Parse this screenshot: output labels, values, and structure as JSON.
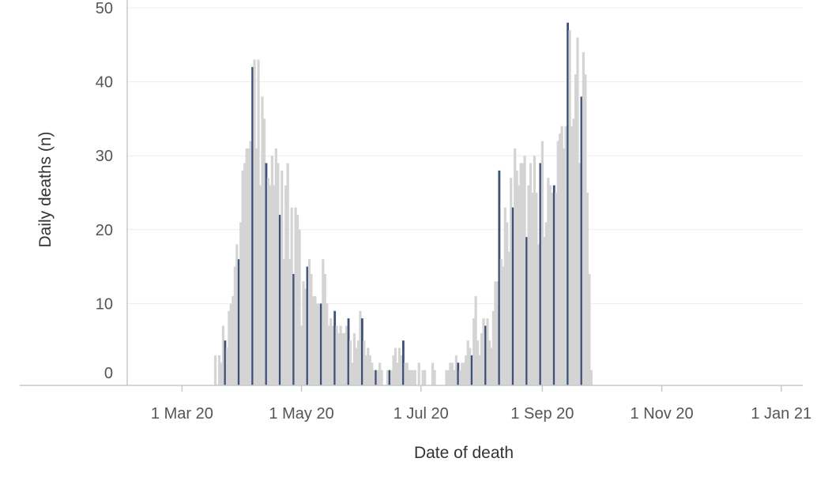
{
  "chart_data": {
    "type": "bar",
    "xlabel": "Date of death",
    "ylabel": "Daily deaths (n)",
    "ylim": [
      0,
      50
    ],
    "y_ticks": [
      {
        "value": 0,
        "label": "0"
      },
      {
        "value": 10,
        "label": "10"
      },
      {
        "value": 20,
        "label": "20"
      },
      {
        "value": 30,
        "label": "30"
      },
      {
        "value": 40,
        "label": "40"
      },
      {
        "value": 50,
        "label": "50"
      }
    ],
    "x_range": [
      "2020-02-02",
      "2021-01-12"
    ],
    "x_ticks": [
      {
        "date": "2020-03-01",
        "label": "1 Mar 20"
      },
      {
        "date": "2020-05-01",
        "label": "1 May 20"
      },
      {
        "date": "2020-07-01",
        "label": "1 Jul 20"
      },
      {
        "date": "2020-09-01",
        "label": "1 Sep 20"
      },
      {
        "date": "2020-11-01",
        "label": "1 Nov 20"
      },
      {
        "date": "2021-01-01",
        "label": "1 Jan 21"
      }
    ],
    "grid": true,
    "colors": {
      "gray_bar": "#d4d4d4",
      "blue_bar": "#3c5078",
      "gridline": "#ececec",
      "axis": "#c8c8c8"
    },
    "series": [
      {
        "start": "2020-03-18",
        "values": [
          3,
          0,
          3,
          2,
          7,
          5,
          4,
          9,
          10,
          11,
          15,
          18,
          16,
          21,
          28,
          29,
          31,
          31,
          32,
          42,
          43,
          31,
          43,
          26,
          38,
          35,
          29,
          27,
          26,
          30,
          26,
          31,
          29,
          22,
          28,
          16,
          26,
          29,
          16,
          23,
          14,
          23,
          22,
          20,
          7,
          13,
          12,
          15,
          16,
          14,
          11,
          11,
          10,
          10,
          10,
          16,
          14,
          10,
          7,
          8,
          7,
          9,
          7,
          6,
          7,
          6,
          6,
          7,
          8,
          5,
          2,
          6,
          4,
          5,
          9,
          8,
          5,
          3,
          4,
          3,
          2,
          1,
          1,
          1,
          2,
          1,
          0,
          0,
          1,
          1,
          1,
          3,
          4,
          2,
          4,
          3,
          5,
          2,
          2,
          1,
          1,
          1,
          1,
          0,
          2,
          0,
          1,
          1,
          0,
          0,
          0,
          2,
          1,
          0,
          0,
          0,
          0,
          0,
          1,
          1,
          2,
          2,
          1,
          3,
          2,
          1,
          2,
          2,
          3,
          5,
          4,
          3,
          8,
          11,
          5,
          3,
          6,
          8,
          7,
          8,
          5,
          4,
          9,
          13,
          13,
          28,
          16,
          15,
          23,
          21,
          17,
          27,
          23,
          31,
          28,
          26,
          29,
          29,
          30,
          19,
          26,
          29,
          25,
          30,
          25,
          18,
          29,
          32,
          19,
          21,
          27,
          26,
          25,
          26,
          25,
          32,
          33,
          34,
          31,
          34,
          48,
          47,
          34,
          35,
          41,
          46,
          29,
          38,
          44,
          41,
          25,
          14,
          1
        ]
      }
    ]
  }
}
